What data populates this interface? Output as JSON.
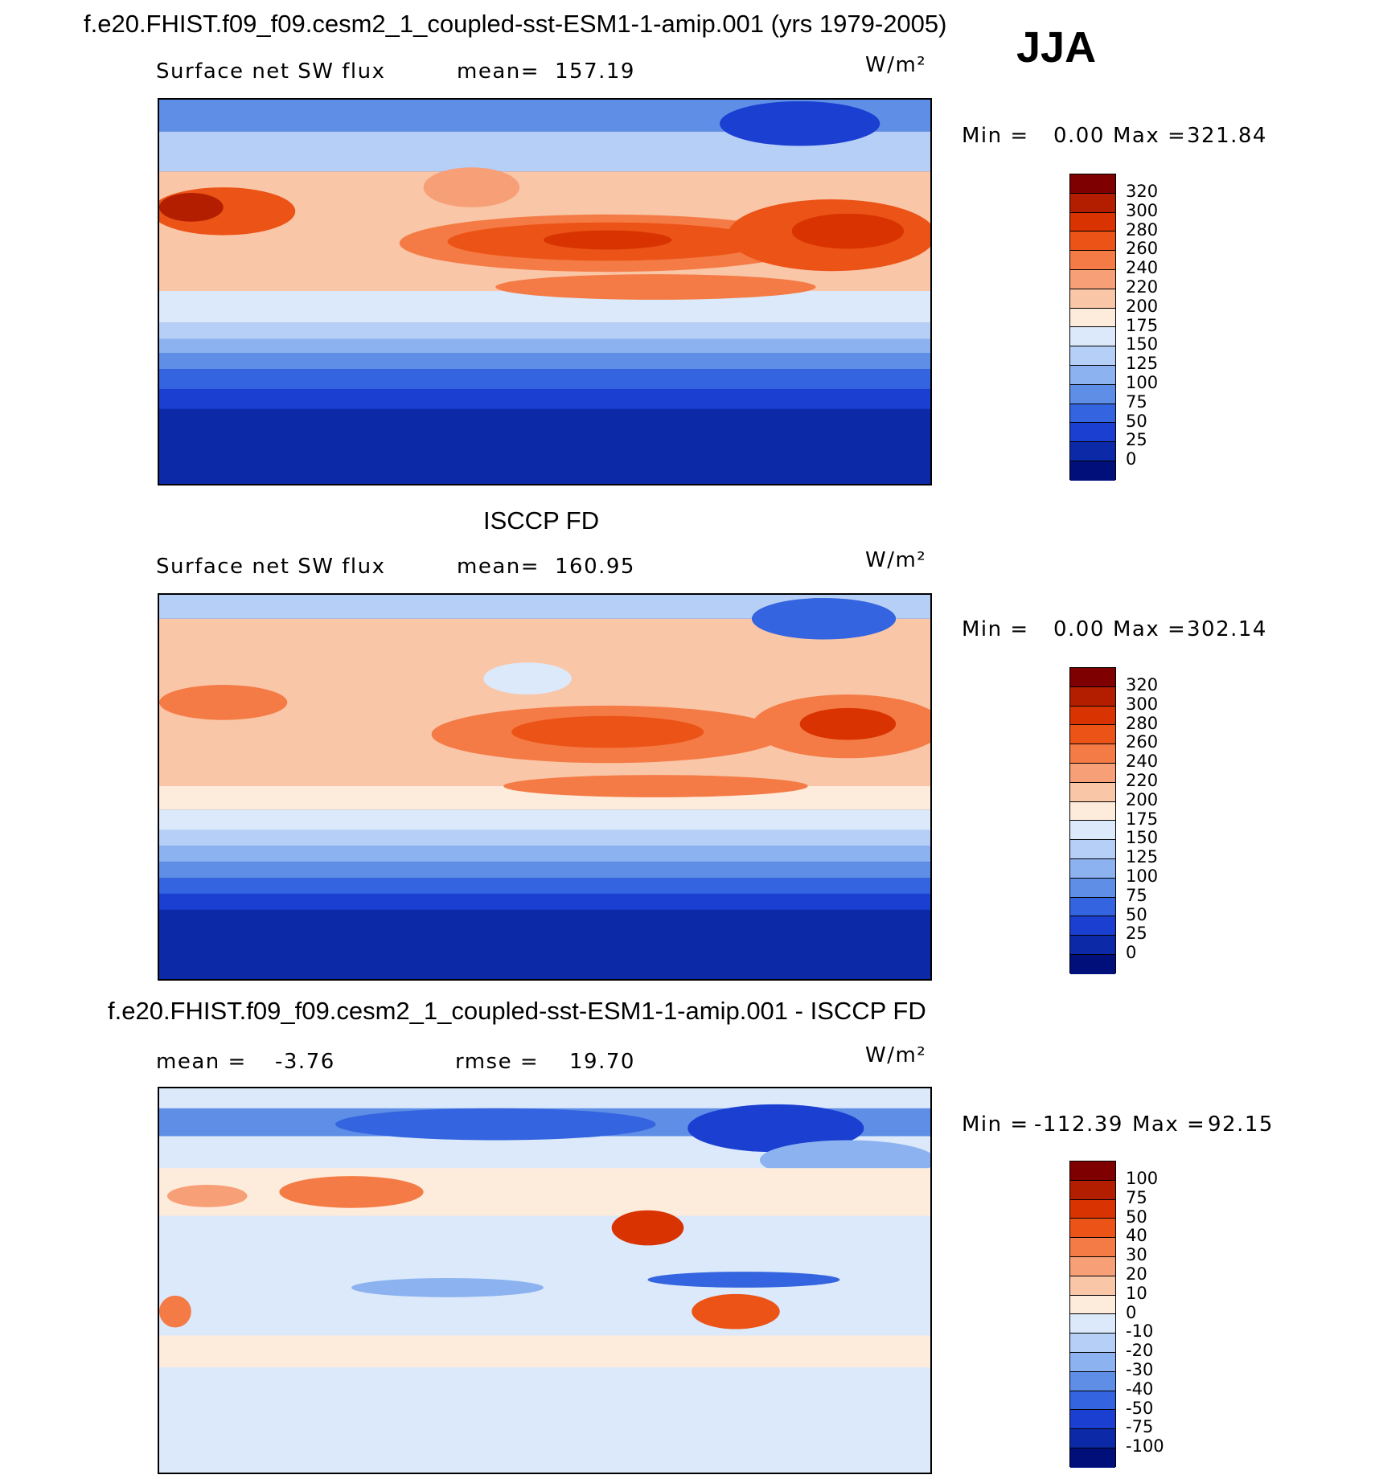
{
  "season": "JJA",
  "panels": [
    {
      "id": "model",
      "title": "f.e20.FHIST.f09_f09.cesm2_1_coupled-sst-ESM1-1-amip.001 (yrs 1979-2005)",
      "left_label": "Surface net SW flux",
      "stat_label": "mean=",
      "stat_value": "157.19",
      "stat2_label": "",
      "stat2_value": "",
      "units": "W/m²",
      "min_label": "Min =",
      "min_value": "0.00",
      "max_label": "Max =",
      "max_value": "321.84",
      "colorbar": {
        "levels": [
          "320",
          "300",
          "280",
          "260",
          "240",
          "220",
          "200",
          "175",
          "150",
          "125",
          "100",
          "75",
          "50",
          "25",
          "0"
        ],
        "colors": [
          "#7f0000",
          "#b31e00",
          "#d83300",
          "#ec5316",
          "#f47b45",
          "#f7a077",
          "#fac6a8",
          "#fdebdc",
          "#dbe9fb",
          "#b5cff7",
          "#8cb2f0",
          "#5e8ee6",
          "#3464df",
          "#1a3fd1",
          "#0c2aa8",
          "#000f7a"
        ]
      }
    },
    {
      "id": "obs",
      "title": "ISCCP FD",
      "left_label": "Surface net SW flux",
      "stat_label": "mean=",
      "stat_value": "160.95",
      "stat2_label": "",
      "stat2_value": "",
      "units": "W/m²",
      "min_label": "Min =",
      "min_value": "0.00",
      "max_label": "Max =",
      "max_value": "302.14",
      "colorbar": {
        "levels": [
          "320",
          "300",
          "280",
          "260",
          "240",
          "220",
          "200",
          "175",
          "150",
          "125",
          "100",
          "75",
          "50",
          "25",
          "0"
        ],
        "colors": [
          "#7f0000",
          "#b31e00",
          "#d83300",
          "#ec5316",
          "#f47b45",
          "#f7a077",
          "#fac6a8",
          "#fdebdc",
          "#dbe9fb",
          "#b5cff7",
          "#8cb2f0",
          "#5e8ee6",
          "#3464df",
          "#1a3fd1",
          "#0c2aa8",
          "#000f7a"
        ]
      }
    },
    {
      "id": "diff",
      "title": "f.e20.FHIST.f09_f09.cesm2_1_coupled-sst-ESM1-1-amip.001 - ISCCP FD",
      "left_label": "mean =",
      "stat_label": "",
      "stat_value": "-3.76",
      "stat2_label": "rmse =",
      "stat2_value": "19.70",
      "units": "W/m²",
      "min_label": "Min =",
      "min_value": "-112.39",
      "max_label": "Max =",
      "max_value": "92.15",
      "colorbar": {
        "levels": [
          "100",
          "75",
          "50",
          "40",
          "30",
          "20",
          "10",
          "0",
          "-10",
          "-20",
          "-30",
          "-40",
          "-50",
          "-75",
          "-100"
        ],
        "colors": [
          "#7f0000",
          "#b31e00",
          "#d83300",
          "#ec5316",
          "#f47b45",
          "#f7a077",
          "#fac6a8",
          "#fdebdc",
          "#dbe9fb",
          "#b5cff7",
          "#8cb2f0",
          "#5e8ee6",
          "#3464df",
          "#1a3fd1",
          "#0c2aa8",
          "#000f7a"
        ]
      }
    }
  ]
}
